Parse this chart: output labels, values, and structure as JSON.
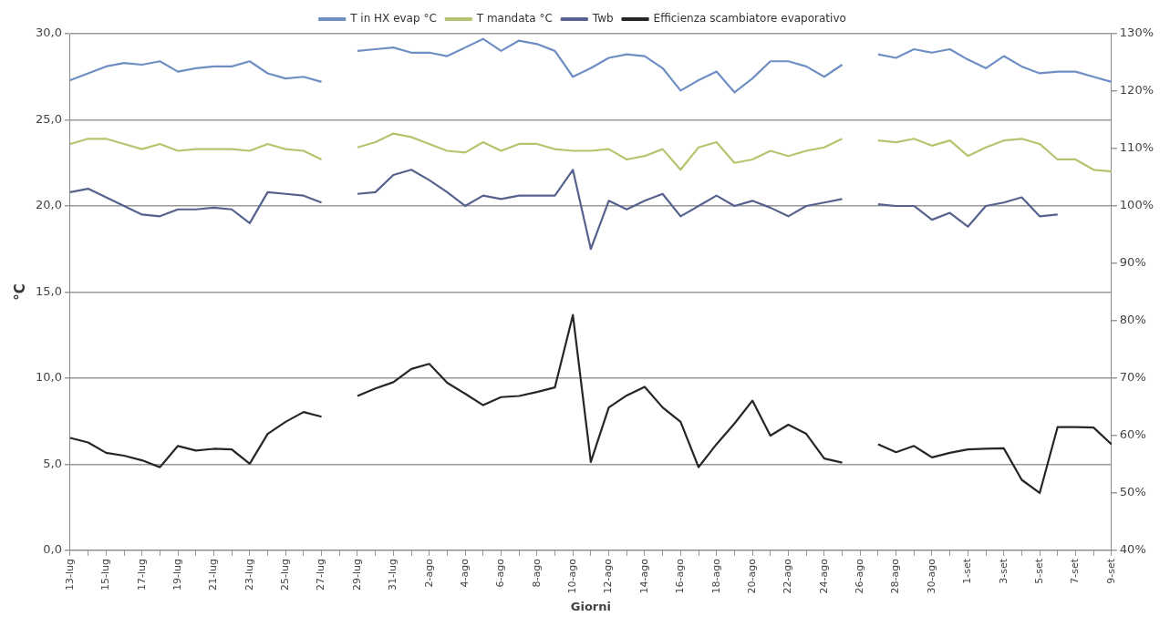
{
  "chart_data": {
    "type": "line",
    "xlabel": "Giorni",
    "ylabel": "°C",
    "categories": [
      "13-lug",
      null,
      "15-lug",
      null,
      "17-lug",
      null,
      "19-lug",
      null,
      "21-lug",
      null,
      "23-lug",
      null,
      "25-lug",
      null,
      "27-lug",
      null,
      "29-lug",
      null,
      "31-lug",
      null,
      "2-ago",
      null,
      "4-ago",
      null,
      "6-ago",
      null,
      "8-ago",
      null,
      "10-ago",
      null,
      "12-ago",
      null,
      "14-ago",
      null,
      "16-ago",
      null,
      "18-ago",
      null,
      "20-ago",
      null,
      "22-ago",
      null,
      "24-ago",
      null,
      "26-ago",
      null,
      "28-ago",
      null,
      "30-ago",
      null,
      "1-set",
      null,
      "3-set",
      null,
      "5-set",
      null,
      "7-set",
      null,
      "9-set"
    ],
    "series": [
      {
        "name": "T in HX evap °C",
        "color": "#6f8fc4",
        "values": [
          27.3,
          27.7,
          28.1,
          28.3,
          28.2,
          28.4,
          27.8,
          28.0,
          28.1,
          28.1,
          28.4,
          27.7,
          27.4,
          27.5,
          27.2,
          null,
          29.0,
          29.1,
          29.2,
          28.9,
          28.9,
          28.7,
          29.2,
          29.7,
          29.0,
          29.6,
          29.4,
          29.0,
          27.5,
          28.0,
          28.6,
          28.8,
          28.7,
          28.0,
          26.7,
          27.3,
          27.8,
          26.6,
          27.4,
          28.4,
          28.4,
          28.1,
          27.5,
          28.2,
          null,
          28.8,
          28.6,
          29.1,
          28.9,
          29.1,
          28.5,
          28.0,
          28.7,
          28.1,
          27.7,
          27.8,
          27.8,
          27.5,
          27.2
        ]
      },
      {
        "name": "T mandata °C",
        "color": "#b3c56e",
        "values": [
          23.6,
          23.9,
          23.9,
          23.6,
          23.3,
          23.6,
          23.2,
          23.3,
          23.3,
          23.3,
          23.2,
          23.6,
          23.3,
          23.2,
          22.7,
          null,
          23.4,
          23.7,
          24.2,
          24.0,
          23.6,
          23.2,
          23.1,
          23.7,
          23.2,
          23.6,
          23.6,
          23.3,
          23.2,
          23.2,
          23.3,
          22.7,
          22.9,
          23.3,
          22.1,
          23.4,
          23.7,
          22.5,
          22.7,
          23.2,
          22.9,
          23.2,
          23.4,
          23.9,
          null,
          23.8,
          23.7,
          23.9,
          23.5,
          23.8,
          22.9,
          23.4,
          23.8,
          23.9,
          23.6,
          22.7,
          22.7,
          22.1,
          22.0
        ]
      },
      {
        "name": "Twb",
        "color": "#56628e",
        "values": [
          20.8,
          21.0,
          20.5,
          20.0,
          19.5,
          19.4,
          19.8,
          19.8,
          19.9,
          19.8,
          19.0,
          20.8,
          20.7,
          20.6,
          20.2,
          null,
          20.7,
          20.8,
          21.8,
          22.1,
          21.5,
          20.8,
          20.0,
          20.6,
          20.4,
          20.6,
          20.6,
          20.6,
          22.1,
          17.5,
          20.3,
          19.8,
          20.3,
          20.7,
          19.4,
          20.0,
          20.6,
          20.0,
          20.3,
          19.9,
          19.4,
          20.0,
          20.2,
          20.4,
          null,
          20.1,
          20.0,
          20.0,
          19.2,
          19.6,
          18.8,
          20.0,
          20.2,
          20.5,
          19.4,
          19.5,
          null,
          null,
          null
        ]
      },
      {
        "name": "Efficienza scambiatore evaporativo",
        "color": "#262626",
        "axis": "y2",
        "values": [
          59.6,
          58.8,
          57.0,
          56.5,
          55.7,
          54.5,
          58.2,
          57.4,
          57.7,
          57.6,
          55.1,
          60.3,
          62.4,
          64.1,
          63.3,
          null,
          66.9,
          68.2,
          69.3,
          71.6,
          72.5,
          69.2,
          67.3,
          65.3,
          66.7,
          66.9,
          67.6,
          68.4,
          81.0,
          55.4,
          64.9,
          67.0,
          68.5,
          64.9,
          62.4,
          54.5,
          58.5,
          62.1,
          66.1,
          60.0,
          61.9,
          60.3,
          56.0,
          55.3,
          null,
          58.5,
          57.1,
          58.2,
          56.2,
          57.0,
          57.6,
          57.7,
          57.8,
          52.3,
          50.0,
          61.5,
          61.5,
          61.4,
          58.5
        ]
      }
    ],
    "ylim": [
      0,
      30
    ],
    "yticks": [
      {
        "value": 0,
        "label": "0,0"
      },
      {
        "value": 5,
        "label": "5,0"
      },
      {
        "value": 10,
        "label": "10,0"
      },
      {
        "value": 15,
        "label": "15,0"
      },
      {
        "value": 20,
        "label": "20,0"
      },
      {
        "value": 25,
        "label": "25,0"
      },
      {
        "value": 30,
        "label": "30,0"
      }
    ],
    "y2lim": [
      40,
      130
    ],
    "y2ticks": [
      {
        "value": 40,
        "label": "40%"
      },
      {
        "value": 50,
        "label": "50%"
      },
      {
        "value": 60,
        "label": "60%"
      },
      {
        "value": 70,
        "label": "70%"
      },
      {
        "value": 80,
        "label": "80%"
      },
      {
        "value": 90,
        "label": "90%"
      },
      {
        "value": 100,
        "label": "100%"
      },
      {
        "value": 110,
        "label": "110%"
      },
      {
        "value": 120,
        "label": "120%"
      },
      {
        "value": 130,
        "label": "130%"
      }
    ],
    "grid": "y",
    "legend": "top",
    "marker": "none",
    "line_style": "solid"
  }
}
